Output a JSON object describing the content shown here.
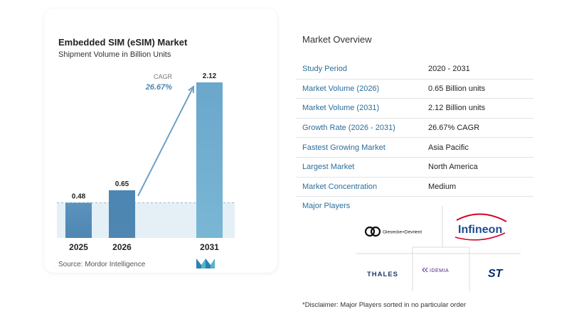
{
  "chart_data": {
    "type": "bar",
    "title": "Embedded SIM (eSIM) Market",
    "subtitle": "Shipment Volume in Billion Units",
    "categories": [
      "2025",
      "2026",
      "2031"
    ],
    "values": [
      0.48,
      0.65,
      2.12
    ],
    "value_labels": [
      "0.48",
      "0.65",
      "2.12"
    ],
    "ylim": [
      0,
      2.12
    ],
    "cagr_label": "CAGR",
    "cagr_value": "26.67%",
    "colors": {
      "bar_light": "#5b93bf",
      "bar_mid": "#4d86b3",
      "bar_dark": "#6aa7cc",
      "arrow": "#6d9fc4",
      "band": "#d9e8f2"
    }
  },
  "source": "Source:  Mordor Intelligence",
  "overview": {
    "title": "Market Overview",
    "rows": [
      {
        "key": "Study Period",
        "value": "2020 - 2031"
      },
      {
        "key": "Market Volume (2026)",
        "value": "0.65 Billion units"
      },
      {
        "key": "Market Volume (2031)",
        "value": "2.12 Billion units"
      },
      {
        "key": "Growth Rate (2026 - 2031)",
        "value": "26.67% CAGR"
      },
      {
        "key": "Fastest Growing Market",
        "value": "Asia Pacific"
      },
      {
        "key": "Largest Market",
        "value": "North America"
      },
      {
        "key": "Market Concentration",
        "value": "Medium"
      }
    ]
  },
  "players": {
    "label": "Major Players",
    "names": [
      "Giesecke+Devrient",
      "Infineon",
      "THALES",
      "IDEMIA",
      "ST"
    ]
  },
  "disclaimer": "*Disclaimer: Major Players sorted in no particular order"
}
